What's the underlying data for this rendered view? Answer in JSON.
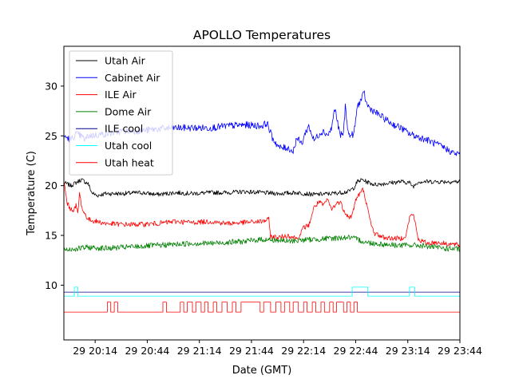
{
  "chart_data": {
    "type": "line",
    "title": "APOLLO Temperatures",
    "xlabel": "Date (GMT)",
    "ylabel": "Temperature (C)",
    "x_unit": "minutes since 20:00 GMT",
    "xlim": [
      -4,
      224
    ],
    "ylim": [
      4.5,
      34.0
    ],
    "xticks": [
      {
        "x": 14,
        "label": "29 20:14"
      },
      {
        "x": 44,
        "label": "29 20:44"
      },
      {
        "x": 74,
        "label": "29 21:14"
      },
      {
        "x": 104,
        "label": "29 21:44"
      },
      {
        "x": 134,
        "label": "29 22:14"
      },
      {
        "x": 164,
        "label": "29 22:44"
      },
      {
        "x": 194,
        "label": "29 23:14"
      },
      {
        "x": 224,
        "label": "29 23:44"
      }
    ],
    "yticks": [
      10,
      15,
      20,
      25,
      30
    ],
    "legend_position": "upper-left",
    "series": [
      {
        "name": "Utah Air",
        "color": "#000000",
        "step": false,
        "x": [
          -4,
          0,
          3,
          6,
          8,
          10,
          12,
          15,
          20,
          30,
          40,
          50,
          60,
          70,
          80,
          90,
          100,
          110,
          120,
          130,
          140,
          150,
          155,
          160,
          163,
          165,
          168,
          170,
          175,
          180,
          190,
          195,
          197,
          200,
          210,
          224
        ],
        "y": [
          20.3,
          20.0,
          20.3,
          20.6,
          20.4,
          20.2,
          19.3,
          19.0,
          19.2,
          19.2,
          19.3,
          19.1,
          19.3,
          19.2,
          19.3,
          19.3,
          19.4,
          19.3,
          19.2,
          19.3,
          19.1,
          19.2,
          19.3,
          19.4,
          19.8,
          20.4,
          20.6,
          20.4,
          20.1,
          20.2,
          20.4,
          20.3,
          19.9,
          20.4,
          20.4,
          20.4
        ]
      },
      {
        "name": "Cabinet Air",
        "color": "#0000ff",
        "step": false,
        "x": [
          -4,
          0,
          3,
          6,
          8,
          10,
          20,
          30,
          40,
          50,
          60,
          70,
          80,
          90,
          100,
          110,
          113,
          116,
          120,
          125,
          128,
          130,
          133,
          135,
          137,
          140,
          142,
          145,
          148,
          150,
          152,
          155,
          157,
          158,
          160,
          163,
          165,
          167,
          169,
          170,
          172,
          175,
          180,
          185,
          190,
          195,
          200,
          205,
          210,
          215,
          220,
          224
        ],
        "y": [
          25.0,
          24.6,
          25.2,
          25.0,
          24.6,
          25.0,
          25.2,
          25.5,
          25.5,
          25.7,
          25.8,
          25.8,
          25.8,
          26.0,
          26.1,
          26.0,
          26.3,
          24.8,
          23.8,
          23.8,
          23.4,
          24.8,
          24.2,
          25.3,
          26.0,
          24.5,
          25.0,
          25.5,
          25.1,
          25.7,
          27.8,
          25.0,
          25.3,
          28.0,
          25.0,
          25.2,
          28.0,
          28.6,
          29.3,
          28.3,
          27.8,
          27.4,
          26.8,
          26.2,
          25.8,
          25.2,
          24.9,
          24.6,
          24.2,
          23.8,
          23.3,
          23.1
        ]
      },
      {
        "name": "ILE Air",
        "color": "#ff0000",
        "step": false,
        "x": [
          -4,
          -3,
          -2,
          0,
          2,
          3,
          4,
          5,
          6,
          7,
          8,
          10,
          12,
          15,
          20,
          30,
          40,
          50,
          60,
          70,
          80,
          90,
          100,
          110,
          114,
          115,
          120,
          125,
          130,
          132,
          134,
          137,
          140,
          143,
          145,
          148,
          150,
          153,
          155,
          157,
          160,
          162,
          164,
          166,
          168,
          169,
          170,
          171,
          173,
          175,
          180,
          185,
          190,
          193,
          195,
          197,
          199,
          200,
          205,
          210,
          215,
          220,
          224
        ],
        "y": [
          20.5,
          19.2,
          18.2,
          17.6,
          17.6,
          18.0,
          17.2,
          19.2,
          18.2,
          17.4,
          17.2,
          16.6,
          16.5,
          16.4,
          16.2,
          16.1,
          16.1,
          16.2,
          16.4,
          16.3,
          16.4,
          16.2,
          16.3,
          16.4,
          16.6,
          14.9,
          14.8,
          15.0,
          14.7,
          15.0,
          15.8,
          16.0,
          17.8,
          18.4,
          18.0,
          18.6,
          17.6,
          18.2,
          18.4,
          17.6,
          16.8,
          17.0,
          18.6,
          19.1,
          19.6,
          19.2,
          18.4,
          17.5,
          16.0,
          15.2,
          14.8,
          14.7,
          14.7,
          15.0,
          16.8,
          17.2,
          15.6,
          14.6,
          14.2,
          14.3,
          14.2,
          14.1,
          14.0
        ]
      },
      {
        "name": "Dome Air",
        "color": "#008000",
        "step": false,
        "x": [
          -4,
          0,
          10,
          20,
          30,
          40,
          50,
          60,
          70,
          80,
          90,
          100,
          110,
          120,
          125,
          130,
          140,
          150,
          160,
          165,
          170,
          180,
          190,
          200,
          210,
          215,
          224
        ],
        "y": [
          13.6,
          13.6,
          13.8,
          13.7,
          13.8,
          13.9,
          14.0,
          14.1,
          14.2,
          14.2,
          14.3,
          14.4,
          14.6,
          14.5,
          14.4,
          14.5,
          14.6,
          14.7,
          14.8,
          14.6,
          14.3,
          14.1,
          14.0,
          14.0,
          13.8,
          13.7,
          13.6
        ]
      },
      {
        "name": "ILE cool",
        "color": "#00008b",
        "step": true,
        "x": [
          -4,
          224
        ],
        "y": [
          9.3,
          9.3
        ]
      },
      {
        "name": "Utah cool",
        "color": "#00ffff",
        "step": true,
        "x": [
          -4,
          2,
          2,
          4,
          4,
          162,
          162,
          171,
          171,
          195,
          195,
          198,
          198,
          224
        ],
        "y": [
          8.9,
          8.9,
          9.8,
          9.8,
          8.9,
          8.9,
          9.8,
          9.8,
          8.9,
          8.9,
          9.8,
          9.8,
          8.9,
          8.9
        ]
      },
      {
        "name": "Utah heat",
        "color": "#ff0000",
        "step": true,
        "x": [
          -4,
          21,
          21,
          23,
          23,
          25,
          25,
          27,
          27,
          53,
          53,
          55,
          55,
          63,
          63,
          65,
          65,
          67,
          67,
          70,
          70,
          72,
          72,
          75,
          75,
          77,
          77,
          79,
          79,
          82,
          82,
          84,
          84,
          87,
          87,
          90,
          90,
          93,
          93,
          95,
          95,
          98,
          98,
          100,
          100,
          109,
          109,
          111,
          111,
          115,
          115,
          118,
          118,
          121,
          121,
          123,
          123,
          126,
          126,
          128,
          128,
          131,
          131,
          134,
          134,
          136,
          136,
          139,
          139,
          141,
          141,
          144,
          144,
          146,
          146,
          149,
          149,
          151,
          151,
          153,
          153,
          157,
          157,
          159,
          159,
          161,
          161,
          163,
          163,
          165,
          165,
          224
        ],
        "y": [
          7.3,
          7.3,
          8.3,
          8.3,
          7.3,
          7.3,
          8.3,
          8.3,
          7.3,
          7.3,
          8.3,
          8.3,
          7.3,
          7.3,
          8.3,
          8.3,
          7.3,
          7.3,
          8.3,
          8.3,
          7.3,
          7.3,
          8.3,
          8.3,
          7.3,
          7.3,
          8.3,
          8.3,
          7.3,
          7.3,
          8.3,
          8.3,
          7.3,
          7.3,
          8.3,
          8.3,
          7.3,
          7.3,
          8.3,
          8.3,
          7.3,
          7.3,
          8.3,
          8.3,
          8.3,
          8.3,
          7.3,
          7.3,
          8.3,
          8.3,
          7.3,
          7.3,
          8.3,
          8.3,
          7.3,
          7.3,
          8.3,
          8.3,
          7.3,
          7.3,
          8.3,
          8.3,
          7.3,
          7.3,
          8.3,
          8.3,
          7.3,
          7.3,
          8.3,
          8.3,
          7.3,
          7.3,
          8.3,
          8.3,
          7.3,
          7.3,
          8.3,
          8.3,
          7.3,
          7.3,
          8.3,
          8.3,
          7.3,
          7.3,
          8.3,
          8.3,
          7.3,
          7.3,
          8.3,
          8.3,
          7.3,
          7.3
        ]
      }
    ]
  }
}
